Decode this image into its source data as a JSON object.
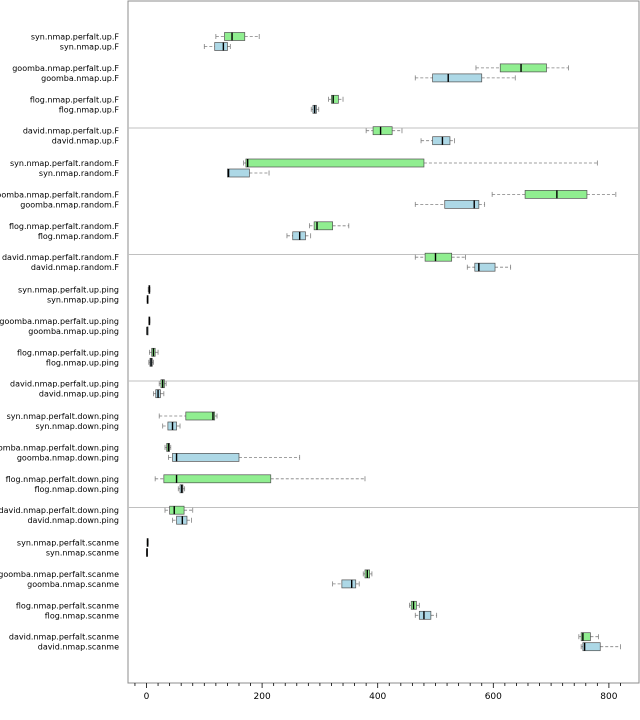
{
  "chart_data": {
    "type": "boxplot",
    "orientation": "horizontal",
    "title": "",
    "xlabel": "",
    "ylabel": "",
    "xlim": [
      -40,
      830
    ],
    "xticks": [
      0,
      200,
      400,
      600,
      800
    ],
    "grid": false,
    "colors": {
      "perfalt": "#90ee90",
      "base": "#add8e6",
      "separator": "#c0c0c0"
    },
    "groups": [
      [
        {
          "name": "syn.nmap.perfalt.up.F",
          "variant": "perfalt",
          "stats": [
            120,
            135,
            148,
            170,
            195
          ]
        },
        {
          "name": "syn.nmap.up.F",
          "variant": "base",
          "stats": [
            100,
            118,
            133,
            140,
            145
          ]
        },
        {
          "name": "goomba.nmap.perfalt.up.F",
          "variant": "perfalt",
          "stats": [
            570,
            612,
            648,
            692,
            730
          ]
        },
        {
          "name": "goomba.nmap.up.F",
          "variant": "base",
          "stats": [
            465,
            495,
            522,
            580,
            638
          ]
        },
        {
          "name": "flog.nmap.perfalt.up.F",
          "variant": "perfalt",
          "stats": [
            315,
            320,
            323,
            332,
            340
          ]
        },
        {
          "name": "flog.nmap.up.F",
          "variant": "base",
          "stats": [
            285,
            288,
            291,
            294,
            298
          ]
        },
        {
          "name": "david.nmap.perfalt.up.F",
          "variant": "perfalt",
          "stats": [
            380,
            392,
            405,
            425,
            442
          ]
        },
        {
          "name": "david.nmap.up.F",
          "variant": "base",
          "stats": [
            475,
            495,
            512,
            525,
            533
          ]
        }
      ],
      [
        {
          "name": "syn.nmap.perfalt.random.F",
          "variant": "perfalt",
          "stats": [
            168,
            172,
            175,
            480,
            780
          ]
        },
        {
          "name": "syn.nmap.random.F",
          "variant": "base",
          "stats": [
            140,
            140,
            142,
            178,
            212
          ]
        },
        {
          "name": "goomba.nmap.perfalt.random.F",
          "variant": "perfalt",
          "stats": [
            598,
            655,
            710,
            762,
            812
          ]
        },
        {
          "name": "goomba.nmap.random.F",
          "variant": "base",
          "stats": [
            465,
            516,
            567,
            575,
            585
          ]
        },
        {
          "name": "flog.nmap.perfalt.random.F",
          "variant": "perfalt",
          "stats": [
            282,
            290,
            295,
            322,
            350
          ]
        },
        {
          "name": "flog.nmap.random.F",
          "variant": "base",
          "stats": [
            243,
            253,
            265,
            275,
            284
          ]
        },
        {
          "name": "david.nmap.perfalt.random.F",
          "variant": "perfalt",
          "stats": [
            465,
            482,
            500,
            528,
            552
          ]
        },
        {
          "name": "david.nmap.random.F",
          "variant": "base",
          "stats": [
            555,
            568,
            575,
            603,
            630
          ]
        }
      ],
      [
        {
          "name": "syn.nmap.perfalt.up.ping",
          "variant": "perfalt",
          "stats": [
            3,
            4,
            5,
            5,
            6
          ]
        },
        {
          "name": "syn.nmap.up.ping",
          "variant": "base",
          "stats": [
            1,
            1,
            2,
            2,
            2
          ]
        },
        {
          "name": "goomba.nmap.perfalt.up.ping",
          "variant": "perfalt",
          "stats": [
            4,
            4,
            5,
            5,
            6
          ]
        },
        {
          "name": "goomba.nmap.up.ping",
          "variant": "base",
          "stats": [
            1,
            1,
            1,
            2,
            2
          ]
        },
        {
          "name": "flog.nmap.perfalt.up.ping",
          "variant": "perfalt",
          "stats": [
            5,
            9,
            12,
            15,
            20
          ]
        },
        {
          "name": "flog.nmap.up.ping",
          "variant": "base",
          "stats": [
            4,
            6,
            8,
            10,
            12
          ]
        },
        {
          "name": "david.nmap.perfalt.up.ping",
          "variant": "perfalt",
          "stats": [
            22,
            25,
            28,
            31,
            34
          ]
        },
        {
          "name": "david.nmap.up.ping",
          "variant": "base",
          "stats": [
            12,
            16,
            20,
            24,
            30
          ]
        }
      ],
      [
        {
          "name": "syn.nmap.perfalt.down.ping",
          "variant": "perfalt",
          "stats": [
            22,
            68,
            115,
            118,
            122
          ]
        },
        {
          "name": "syn.nmap.down.ping",
          "variant": "base",
          "stats": [
            28,
            37,
            45,
            52,
            58
          ]
        },
        {
          "name": "goomba.nmap.perfalt.down.ping",
          "variant": "perfalt",
          "stats": [
            32,
            35,
            38,
            40,
            42
          ]
        },
        {
          "name": "goomba.nmap.down.ping",
          "variant": "base",
          "stats": [
            38,
            45,
            52,
            160,
            265
          ]
        },
        {
          "name": "flog.nmap.perfalt.down.ping",
          "variant": "perfalt",
          "stats": [
            15,
            30,
            52,
            215,
            378
          ]
        },
        {
          "name": "flog.nmap.down.ping",
          "variant": "base",
          "stats": [
            55,
            58,
            61,
            63,
            66
          ]
        },
        {
          "name": "david.nmap.perfalt.down.ping",
          "variant": "perfalt",
          "stats": [
            32,
            40,
            48,
            65,
            80
          ]
        },
        {
          "name": "david.nmap.down.ping",
          "variant": "base",
          "stats": [
            45,
            52,
            62,
            70,
            78
          ]
        }
      ],
      [
        {
          "name": "syn.nmap.perfalt.scanme",
          "variant": "perfalt",
          "stats": [
            1,
            1,
            2,
            2,
            3
          ]
        },
        {
          "name": "syn.nmap.scanme",
          "variant": "base",
          "stats": [
            0,
            0,
            1,
            1,
            1
          ]
        },
        {
          "name": "goomba.nmap.perfalt.scanme",
          "variant": "perfalt",
          "stats": [
            375,
            378,
            382,
            386,
            390
          ]
        },
        {
          "name": "goomba.nmap.scanme",
          "variant": "base",
          "stats": [
            322,
            338,
            355,
            362,
            368
          ]
        },
        {
          "name": "flog.nmap.perfalt.scanme",
          "variant": "perfalt",
          "stats": [
            455,
            458,
            462,
            467,
            472
          ]
        },
        {
          "name": "flog.nmap.scanme",
          "variant": "base",
          "stats": [
            465,
            472,
            480,
            492,
            502
          ]
        },
        {
          "name": "david.nmap.perfalt.scanme",
          "variant": "perfalt",
          "stats": [
            748,
            752,
            755,
            768,
            782
          ]
        },
        {
          "name": "david.nmap.scanme",
          "variant": "base",
          "stats": [
            752,
            755,
            758,
            785,
            820
          ]
        }
      ]
    ]
  }
}
